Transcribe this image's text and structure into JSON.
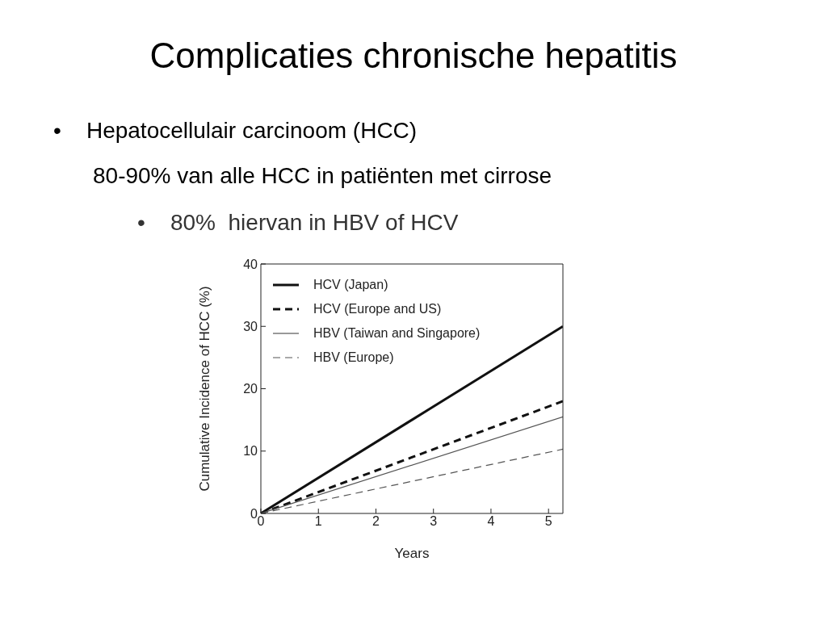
{
  "chart_data": {
    "type": "line",
    "title": "Complicaties chronische hepatitis",
    "annotations": [
      "•    Hepatocellulair carcinoom (HCC)",
      "80-90% van alle HCC in patiënten met cirrose",
      "•    80%  hiervan in HBV of HCV"
    ],
    "xlabel": "Years",
    "ylabel": "Cumulative Incidence of HCC (%)",
    "x": [
      0,
      5.25
    ],
    "xlim": [
      0,
      5.25
    ],
    "xticks": [
      0,
      1,
      2,
      3,
      4,
      5
    ],
    "ylim": [
      0,
      40
    ],
    "yticks": [
      0,
      10,
      20,
      30,
      40
    ],
    "series": [
      {
        "name": "HCV (Japan)",
        "color": "#111111",
        "values": [
          0,
          30
        ],
        "line_style": "solid"
      },
      {
        "name": "HCV (Europe and US)",
        "color": "#111111",
        "values": [
          0,
          18
        ],
        "line_style": "dashed"
      },
      {
        "name": "HBV (Taiwan and Singapore)",
        "color": "#555555",
        "values": [
          0,
          15.5
        ],
        "line_style": "solid"
      },
      {
        "name": "HBV (Europe)",
        "color": "#555555",
        "values": [
          0,
          10.3
        ],
        "line_style": "dashed"
      }
    ],
    "grid": false,
    "legend": "top left",
    "marker": "none"
  }
}
